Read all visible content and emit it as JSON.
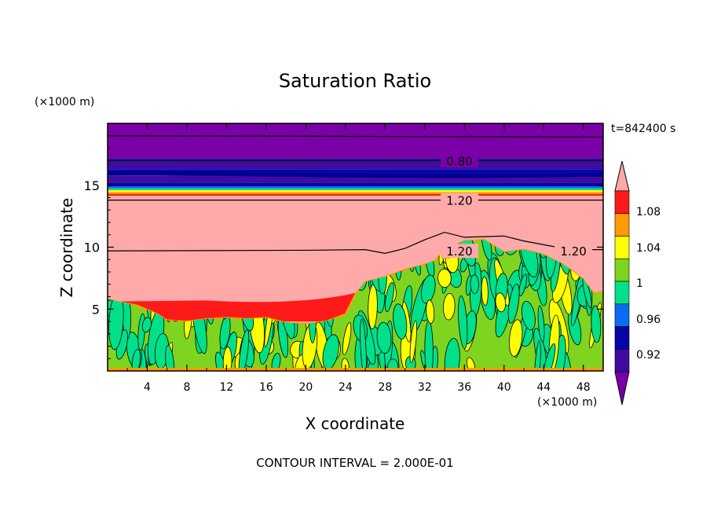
{
  "chart_data": {
    "type": "heatmap",
    "title": "Saturation Ratio",
    "xlabel": "X coordinate",
    "ylabel": "Z coordinate",
    "x_unit": "(×1000 m)",
    "y_unit": "(×1000 m)",
    "time_label": "t=842400 s",
    "footer": "CONTOUR INTERVAL = 2.000E-01",
    "xlim": [
      0,
      50
    ],
    "ylim": [
      0,
      20
    ],
    "x_ticks": [
      4,
      8,
      12,
      16,
      20,
      24,
      28,
      32,
      36,
      40,
      44,
      48
    ],
    "y_ticks": [
      5,
      10,
      15
    ],
    "colorbar": {
      "colors": [
        "#7a00a8",
        "#3f0ba0",
        "#0505a8",
        "#0a6cf0",
        "#00e08a",
        "#7fd420",
        "#ffff00",
        "#ff9a00",
        "#ff1a1a",
        "#ffaaaa"
      ],
      "labels": [
        "0.92",
        "0.96",
        "1",
        "1.04",
        "1.08"
      ]
    },
    "contour_labels": [
      {
        "text": "0.80",
        "x": 35.5,
        "z": 17.0
      },
      {
        "text": "1.20",
        "x": 35.5,
        "z": 13.8
      },
      {
        "text": "1.20",
        "x": 35.5,
        "z": 9.7
      },
      {
        "text": "1.20",
        "x": 47.0,
        "z": 9.7
      }
    ]
  }
}
